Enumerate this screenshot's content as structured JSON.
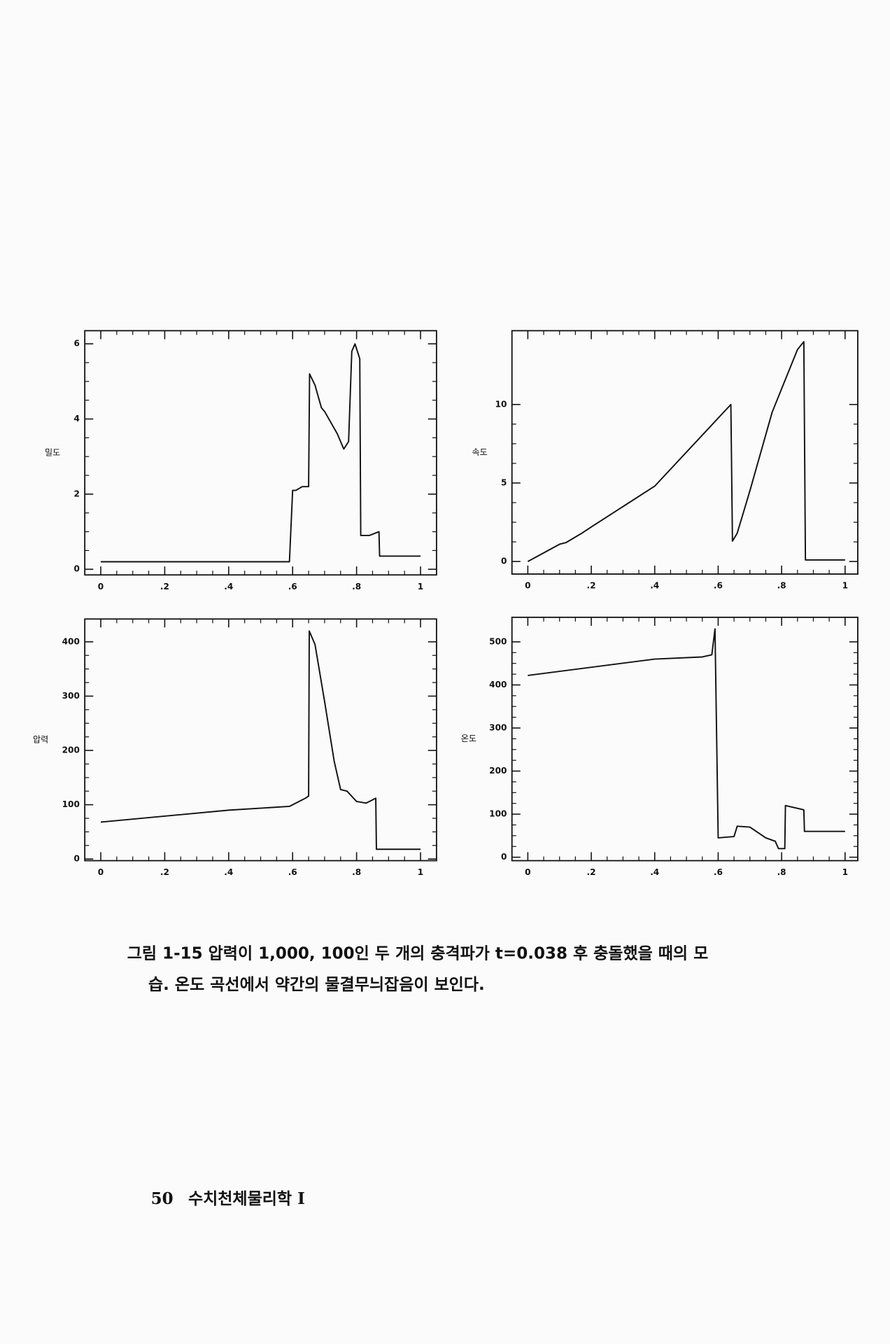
{
  "chart_data": [
    {
      "type": "line",
      "ylabel": "밀도",
      "color": "#111111",
      "x": [
        0,
        0.59,
        0.6,
        0.61,
        0.63,
        0.65,
        0.653,
        0.67,
        0.69,
        0.7,
        0.74,
        0.76,
        0.775,
        0.785,
        0.795,
        0.81,
        0.813,
        0.84,
        0.87,
        0.872,
        1
      ],
      "values": [
        0.2,
        0.2,
        2.1,
        2.1,
        2.2,
        2.2,
        5.2,
        4.9,
        4.3,
        4.2,
        3.6,
        3.2,
        3.4,
        5.8,
        6.0,
        5.6,
        0.9,
        0.9,
        1.0,
        0.35,
        0.35
      ],
      "xlim": [
        -0.05,
        1.05
      ],
      "ylim": [
        -0.15,
        6.35
      ],
      "xticks": [
        0,
        {
          "value": 0.2,
          "label": ".2"
        },
        {
          "value": 0.4,
          "label": ".4"
        },
        {
          "value": 0.6,
          "label": ".6"
        },
        {
          "value": 0.8,
          "label": ".8"
        },
        1
      ],
      "yticks": [
        0,
        2,
        4,
        6
      ]
    },
    {
      "type": "line",
      "ylabel": "속도",
      "color": "#111111",
      "x": [
        0,
        0.1,
        0.12,
        0.17,
        0.2,
        0.4,
        0.64,
        0.645,
        0.66,
        0.7,
        0.77,
        0.8,
        0.85,
        0.87,
        0.875,
        1
      ],
      "values": [
        0,
        1.1,
        1.2,
        1.8,
        2.2,
        4.8,
        10,
        1.3,
        1.8,
        4.5,
        9.5,
        11,
        13.5,
        14,
        0.1,
        0.1
      ],
      "xlim": [
        -0.05,
        1.04
      ],
      "ylim": [
        -0.8,
        14.7
      ],
      "xticks": [
        0,
        {
          "value": 0.2,
          "label": ".2"
        },
        {
          "value": 0.4,
          "label": ".4"
        },
        {
          "value": 0.6,
          "label": ".6"
        },
        {
          "value": 0.8,
          "label": ".8"
        },
        1
      ],
      "yticks": [
        0,
        5,
        10
      ]
    },
    {
      "type": "line",
      "ylabel": "압력",
      "color": "#111111",
      "x": [
        0,
        0.4,
        0.59,
        0.64,
        0.65,
        0.652,
        0.67,
        0.7,
        0.73,
        0.75,
        0.77,
        0.8,
        0.83,
        0.86,
        0.862,
        1
      ],
      "values": [
        68,
        90,
        97,
        112,
        116,
        420,
        395,
        290,
        180,
        128,
        125,
        106,
        103,
        112,
        18,
        18
      ],
      "xlim": [
        -0.05,
        1.05
      ],
      "ylim": [
        -3,
        442
      ],
      "xticks": [
        0,
        {
          "value": 0.2,
          "label": ".2"
        },
        {
          "value": 0.4,
          "label": ".4"
        },
        {
          "value": 0.6,
          "label": ".6"
        },
        {
          "value": 0.8,
          "label": ".8"
        },
        1
      ],
      "yticks": [
        0,
        100,
        200,
        300,
        400
      ]
    },
    {
      "type": "line",
      "ylabel": "온도",
      "color": "#111111",
      "x": [
        0,
        0.4,
        0.55,
        0.58,
        0.59,
        0.6,
        0.65,
        0.66,
        0.7,
        0.75,
        0.78,
        0.79,
        0.81,
        0.812,
        0.87,
        0.872,
        1
      ],
      "values": [
        422,
        460,
        465,
        470,
        530,
        45,
        48,
        72,
        70,
        45,
        37,
        20,
        20,
        120,
        110,
        60,
        60
      ],
      "xlim": [
        -0.05,
        1.04
      ],
      "ylim": [
        -8,
        557
      ],
      "xticks": [
        0,
        {
          "value": 0.2,
          "label": ".2"
        },
        {
          "value": 0.4,
          "label": ".4"
        },
        {
          "value": 0.6,
          "label": ".6"
        },
        {
          "value": 0.8,
          "label": ".8"
        },
        1
      ],
      "yticks": [
        0,
        100,
        200,
        300,
        400,
        500
      ]
    }
  ],
  "caption": [
    "그림 1-15  압력이 1,000, 100인 두 개의 충격파가 t=0.038 후 충돌했을 때의 모",
    "습. 온도 곡선에서 약간의 물결무늬잡음이 보인다."
  ],
  "footer": {
    "page_number": 50,
    "book_title": "수치천체물리학 Ⅰ"
  }
}
